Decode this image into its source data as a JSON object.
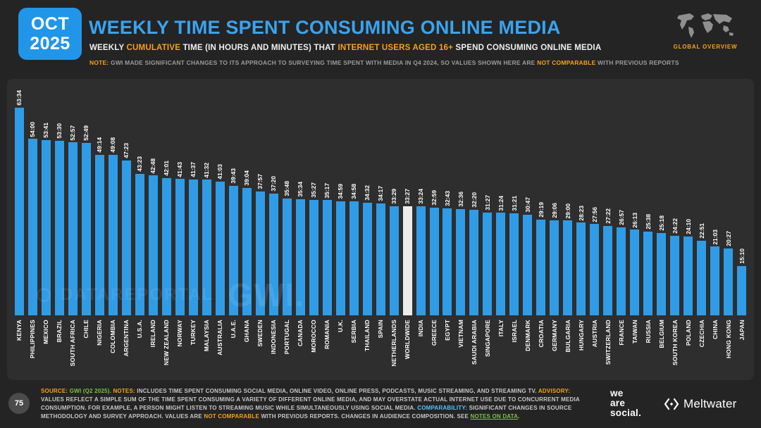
{
  "header": {
    "date_month": "OCT",
    "date_year": "2025",
    "title": "WEEKLY TIME SPENT CONSUMING ONLINE MEDIA",
    "subtitle_segments": [
      {
        "t": "WEEKLY ",
        "c": ""
      },
      {
        "t": "CUMULATIVE",
        "c": "o"
      },
      {
        "t": " TIME (IN HOURS AND MINUTES) THAT ",
        "c": ""
      },
      {
        "t": "INTERNET USERS AGED 16+",
        "c": "o"
      },
      {
        "t": " SPEND CONSUMING ONLINE MEDIA",
        "c": ""
      }
    ],
    "note_segments": [
      {
        "t": "NOTE:",
        "c": "o"
      },
      {
        "t": " GWI MADE SIGNIFICANT CHANGES TO ITS APPROACH TO SURVEYING TIME SPENT WITH MEDIA IN Q4 2024, SO VALUES SHOWN HERE ARE ",
        "c": ""
      },
      {
        "t": "NOT COMPARABLE",
        "c": "o"
      },
      {
        "t": " WITH PREVIOUS REPORTS",
        "c": ""
      }
    ],
    "global_overview_label": "GLOBAL OVERVIEW"
  },
  "watermark": {
    "brand": "DATAREPORTAL",
    "gwi": "GWI."
  },
  "chart_data": {
    "type": "bar",
    "title": "WEEKLY TIME SPENT CONSUMING ONLINE MEDIA",
    "unit": "hours:minutes per week",
    "value_label_rotation": -90,
    "category_label_rotation": -90,
    "grid": false,
    "legend": false,
    "ylim_hours": [
      0,
      63.57
    ],
    "bar_color": "#2f9ce8",
    "highlight_color": "#ececec",
    "highlight_category": "WORLDWIDE",
    "categories": [
      "KENYA",
      "PHILIPPINES",
      "MEXICO",
      "BRAZIL",
      "SOUTH AFRICA",
      "CHILE",
      "NIGERIA",
      "COLOMBIA",
      "ARGENTINA",
      "U.S.A.",
      "IRELAND",
      "NEW ZEALAND",
      "NORWAY",
      "TURKEY",
      "MALAYSIA",
      "AUSTRALIA",
      "U.A.E.",
      "GHANA",
      "SWEDEN",
      "INDONESIA",
      "PORTUGAL",
      "CANADA",
      "MOROCCO",
      "ROMANIA",
      "U.K.",
      "SERBIA",
      "THAILAND",
      "SPAIN",
      "NETHERLANDS",
      "WORLDWIDE",
      "INDIA",
      "GREECE",
      "EGYPT",
      "VIETNAM",
      "SAUDI ARABIA",
      "SINGAPORE",
      "ITALY",
      "ISRAEL",
      "DENMARK",
      "CROATIA",
      "GERMANY",
      "BULGARIA",
      "HUNGARY",
      "AUSTRIA",
      "SWITZERLAND",
      "FRANCE",
      "TAIWAN",
      "RUSSIA",
      "BELGIUM",
      "SOUTH KOREA",
      "POLAND",
      "CZECHIA",
      "CHINA",
      "HONG KONG",
      "JAPAN"
    ],
    "values_hhmm": [
      "63:34",
      "54:00",
      "53:41",
      "53:30",
      "52:57",
      "52:49",
      "49:14",
      "49:08",
      "47:23",
      "43:23",
      "42:48",
      "42:01",
      "41:43",
      "41:37",
      "41:32",
      "41:03",
      "39:43",
      "39:04",
      "37:57",
      "37:20",
      "35:48",
      "35:34",
      "35:27",
      "35:17",
      "34:59",
      "34:58",
      "34:32",
      "34:17",
      "33:29",
      "33:27",
      "33:24",
      "32:59",
      "32:43",
      "32:36",
      "32:20",
      "31:27",
      "31:24",
      "31:21",
      "30:47",
      "29:19",
      "29:06",
      "29:00",
      "28:23",
      "27:56",
      "27:22",
      "26:57",
      "26:13",
      "25:38",
      "25:18",
      "24:22",
      "24:10",
      "22:51",
      "21:03",
      "20:27",
      "15:10"
    ]
  },
  "footer": {
    "page_number": "75",
    "source_segments": [
      {
        "t": "SOURCE:",
        "c": "o"
      },
      {
        "t": " ",
        "c": ""
      },
      {
        "t": "GWI (Q2 2025).",
        "c": "g"
      },
      {
        "t": " ",
        "c": ""
      },
      {
        "t": "NOTES:",
        "c": "o"
      },
      {
        "t": " INCLUDES TIME SPENT CONSUMING SOCIAL MEDIA, ONLINE VIDEO, ONLINE PRESS, PODCASTS, MUSIC STREAMING, AND STREAMING TV. ",
        "c": ""
      },
      {
        "t": "ADVISORY:",
        "c": "o"
      },
      {
        "t": " VALUES REFLECT A SIMPLE SUM OF THE TIME SPENT CONSUMING A VARIETY OF DIFFERENT ONLINE MEDIA, AND MAY OVERSTATE ACTUAL INTERNET USE DUE TO CONCURRENT MEDIA CONSUMPTION. FOR EXAMPLE, A PERSON MIGHT LISTEN TO STREAMING MUSIC WHILE SIMULTANEOUSLY USING SOCIAL MEDIA. ",
        "c": ""
      },
      {
        "t": "COMPARABILITY:",
        "c": "b"
      },
      {
        "t": " SIGNIFICANT CHANGES IN SOURCE METHODOLOGY AND SURVEY APPROACH. VALUES ARE ",
        "c": ""
      },
      {
        "t": "NOT COMPARABLE",
        "c": "o"
      },
      {
        "t": " WITH PREVIOUS REPORTS. CHANGES IN AUDIENCE COMPOSITION. SEE ",
        "c": ""
      },
      {
        "t": "NOTES ON DATA",
        "c": "g",
        "link": true
      },
      {
        "t": ".",
        "c": ""
      }
    ],
    "we_are_social_lines": [
      "we",
      "are",
      "social."
    ],
    "meltwater_label": "Meltwater"
  },
  "colors": {
    "accent_blue": "#2f9ce8",
    "accent_orange": "#f7a11a",
    "accent_green": "#7ac143",
    "highlight_bar": "#ececec",
    "background": "#242424",
    "panel": "#2e2e2e"
  }
}
